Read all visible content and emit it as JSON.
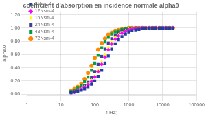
{
  "chart_data": {
    "type": "scatter",
    "title": "coefficient d'absorption en incidence normale alpha0",
    "xlabel": "f(Hz)",
    "ylabel": "alpha0",
    "log": "x",
    "grid": true,
    "legend": "upper left",
    "xlim": [
      1,
      100000
    ],
    "xticks": [
      1,
      10,
      100,
      1000,
      10000,
      100000
    ],
    "ylim": [
      -0.02,
      1.25
    ],
    "yticks": [
      {
        "value": 0.0,
        "label": "0,00"
      },
      {
        "value": 0.2,
        "label": "0,20"
      },
      {
        "value": 0.4,
        "label": "0,40"
      },
      {
        "value": 0.6,
        "label": "0,60"
      },
      {
        "value": 0.8,
        "label": "0,80"
      },
      {
        "value": 1.0,
        "label": "1,00"
      },
      {
        "value": 1.2,
        "label": "1,20"
      }
    ],
    "x": [
      20,
      25,
      31.5,
      40,
      50,
      63,
      80,
      100,
      125,
      160,
      200,
      250,
      315,
      400,
      500,
      630,
      800,
      1000,
      1250,
      1600,
      2000,
      2500,
      3150,
      4000,
      5000,
      6300,
      8000,
      10000,
      12500,
      16000,
      20000
    ],
    "series": [
      {
        "name": "8Nsm-4",
        "color": "#1f3f9f",
        "marker": "square",
        "values": [
          0.02,
          0.03,
          0.04,
          0.06,
          0.08,
          0.11,
          0.15,
          0.2,
          0.27,
          0.36,
          0.47,
          0.58,
          0.68,
          0.76,
          0.82,
          0.87,
          0.91,
          0.94,
          0.96,
          0.97,
          0.98,
          0.99,
          0.99,
          1.0,
          1.0,
          1.0,
          1.0,
          1.0,
          1.0,
          1.0,
          1.0
        ]
      },
      {
        "name": "12Nsm-4",
        "color": "#ff00ff",
        "marker": "diamond",
        "values": [
          0.02,
          0.03,
          0.05,
          0.07,
          0.1,
          0.14,
          0.19,
          0.26,
          0.34,
          0.45,
          0.56,
          0.67,
          0.76,
          0.83,
          0.88,
          0.92,
          0.95,
          0.97,
          0.98,
          0.99,
          0.99,
          1.0,
          1.0,
          1.0,
          1.0,
          1.0,
          1.0,
          1.0,
          1.0,
          1.0,
          1.0
        ]
      },
      {
        "name": "16Nsm-4",
        "color": "#ffff00",
        "marker": "triangle",
        "values": [
          0.02,
          0.03,
          0.05,
          0.08,
          0.11,
          0.15,
          0.21,
          0.28,
          0.37,
          0.49,
          0.6,
          0.71,
          0.79,
          0.86,
          0.9,
          0.94,
          0.96,
          0.98,
          0.99,
          0.99,
          1.0,
          1.0,
          1.0,
          1.0,
          1.0,
          1.0,
          1.0,
          1.0,
          1.0,
          1.0,
          1.0
        ]
      },
      {
        "name": "24Nsm-4",
        "color": "#404090",
        "marker": "square",
        "values": [
          0.03,
          0.04,
          0.06,
          0.09,
          0.13,
          0.18,
          0.25,
          0.34,
          0.45,
          0.57,
          0.68,
          0.77,
          0.84,
          0.89,
          0.93,
          0.96,
          0.97,
          0.98,
          0.99,
          1.0,
          1.0,
          1.0,
          1.0,
          1.0,
          1.0,
          1.0,
          1.0,
          1.0,
          1.0,
          1.0,
          1.0
        ]
      },
      {
        "name": "48Nsm-4",
        "color": "#00a040",
        "marker": "square",
        "values": [
          0.04,
          0.06,
          0.09,
          0.13,
          0.19,
          0.26,
          0.36,
          0.47,
          0.59,
          0.7,
          0.79,
          0.86,
          0.91,
          0.94,
          0.96,
          0.98,
          0.99,
          0.99,
          1.0,
          1.0,
          1.0,
          1.0,
          1.0,
          1.0,
          1.0,
          1.0,
          1.0,
          1.0,
          1.0,
          1.0,
          1.0
        ]
      },
      {
        "name": "72Nsm-4",
        "color": "#ff8800",
        "marker": "circle",
        "values": [
          0.05,
          0.08,
          0.11,
          0.16,
          0.23,
          0.32,
          0.43,
          0.55,
          0.67,
          0.77,
          0.84,
          0.9,
          0.93,
          0.96,
          0.97,
          0.98,
          0.99,
          1.0,
          1.0,
          1.0,
          1.0,
          1.0,
          1.0,
          1.0,
          1.0,
          1.0,
          1.0,
          1.0,
          1.0,
          1.0,
          1.0
        ]
      }
    ]
  }
}
